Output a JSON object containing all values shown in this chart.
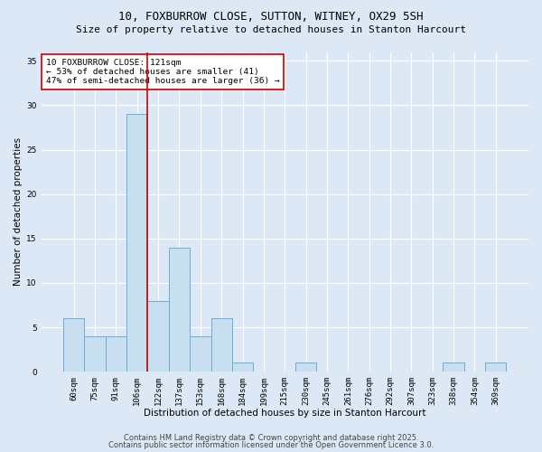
{
  "title_line1": "10, FOXBURROW CLOSE, SUTTON, WITNEY, OX29 5SH",
  "title_line2": "Size of property relative to detached houses in Stanton Harcourt",
  "xlabel": "Distribution of detached houses by size in Stanton Harcourt",
  "ylabel": "Number of detached properties",
  "categories": [
    "60sqm",
    "75sqm",
    "91sqm",
    "106sqm",
    "122sqm",
    "137sqm",
    "153sqm",
    "168sqm",
    "184sqm",
    "199sqm",
    "215sqm",
    "230sqm",
    "245sqm",
    "261sqm",
    "276sqm",
    "292sqm",
    "307sqm",
    "323sqm",
    "338sqm",
    "354sqm",
    "369sqm"
  ],
  "values": [
    6,
    4,
    4,
    29,
    8,
    14,
    4,
    6,
    1,
    0,
    0,
    1,
    0,
    0,
    0,
    0,
    0,
    0,
    1,
    0,
    1
  ],
  "bar_color": "#c8dff0",
  "bar_edge_color": "#6aaed6",
  "red_line_x": 3.5,
  "annotation_text": "10 FOXBURROW CLOSE: 121sqm\n← 53% of detached houses are smaller (41)\n47% of semi-detached houses are larger (36) →",
  "annotation_box_color": "white",
  "annotation_box_edge_color": "#cc0000",
  "annotation_fontsize": 6.8,
  "ylim": [
    0,
    36
  ],
  "yticks": [
    0,
    5,
    10,
    15,
    20,
    25,
    30,
    35
  ],
  "footer_line1": "Contains HM Land Registry data © Crown copyright and database right 2025.",
  "footer_line2": "Contains public sector information licensed under the Open Government Licence 3.0.",
  "bg_color": "#dce8f5",
  "plot_bg_color": "#dce8f5",
  "title_fontsize": 9,
  "subtitle_fontsize": 8,
  "axis_label_fontsize": 7.5,
  "tick_fontsize": 6.5,
  "footer_fontsize": 6
}
